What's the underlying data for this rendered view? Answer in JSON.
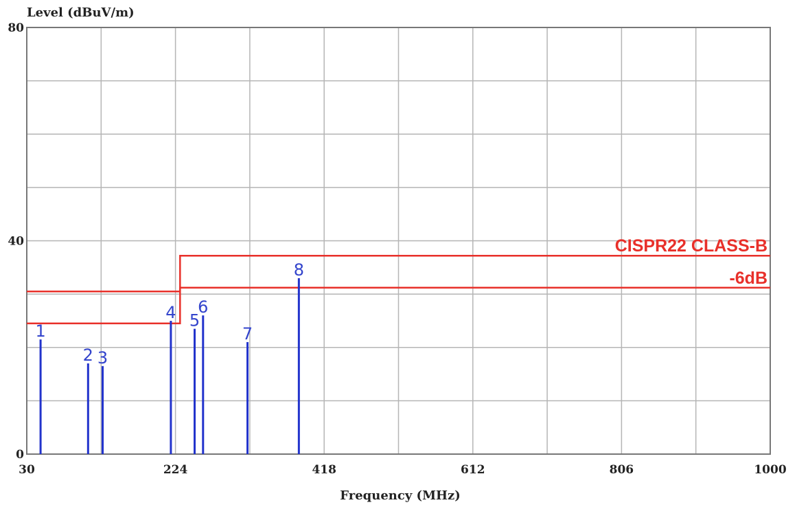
{
  "chart_data": {
    "type": "line",
    "ylabel": "Level (dBuV/m)",
    "xlabel": "Frequency (MHz)",
    "xlim": [
      30,
      1000
    ],
    "ylim": [
      0,
      80
    ],
    "x_ticks": [
      30,
      224,
      418,
      612,
      806,
      1000
    ],
    "y_ticks": [
      0,
      40,
      80
    ],
    "x_gridlines": 10,
    "y_gridlines": 8,
    "grid": true,
    "colors": {
      "limit": "#e8302a",
      "marker": "#2233cc",
      "grid": "#b5b5b5"
    },
    "limits": [
      {
        "name": "CISPR22 CLASS-B",
        "points": [
          [
            30,
            24.5
          ],
          [
            230,
            24.5
          ],
          [
            230,
            37.2
          ],
          [
            1000,
            37.2
          ]
        ]
      },
      {
        "name": "-6dB",
        "points": [
          [
            30,
            30.5
          ],
          [
            230,
            30.5
          ],
          [
            230,
            31.2
          ],
          [
            1000,
            31.2
          ]
        ]
      }
    ],
    "markers": [
      {
        "label": "1",
        "x": 48,
        "y": 21.5
      },
      {
        "label": "2",
        "x": 110,
        "y": 17
      },
      {
        "label": "3",
        "x": 129,
        "y": 16.5
      },
      {
        "label": "4",
        "x": 218,
        "y": 25
      },
      {
        "label": "5",
        "x": 249,
        "y": 23.5
      },
      {
        "label": "6",
        "x": 260,
        "y": 26
      },
      {
        "label": "7",
        "x": 318,
        "y": 21
      },
      {
        "label": "8",
        "x": 385,
        "y": 33
      }
    ]
  }
}
